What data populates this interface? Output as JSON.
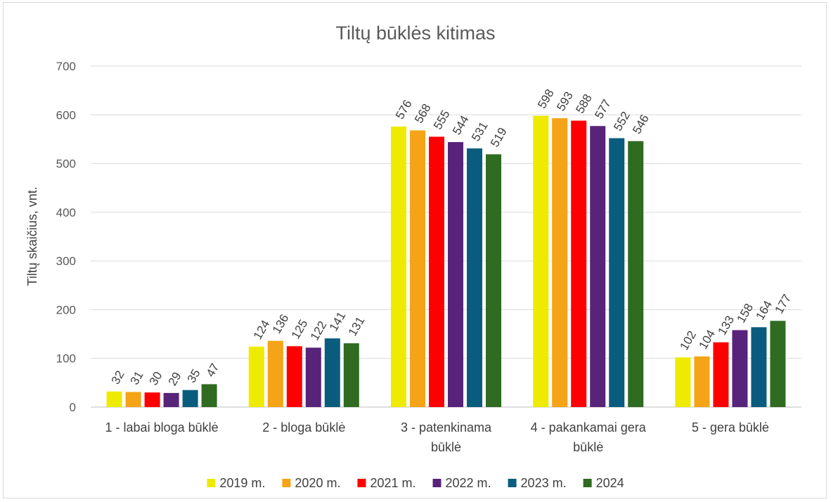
{
  "chart_data": {
    "type": "bar",
    "title": "Tiltų būklės kitimas",
    "ylabel": "Tiltų skaičius, vnt.",
    "xlabel": "",
    "ylim": [
      0,
      700
    ],
    "yticks": [
      0,
      100,
      200,
      300,
      400,
      500,
      600,
      700
    ],
    "grid": true,
    "legend_position": "bottom",
    "categories": [
      [
        "1 - labai bloga būklė"
      ],
      [
        "2 - bloga būklė"
      ],
      [
        "3 - patenkinama",
        "būklė"
      ],
      [
        "4 - pakankamai gera",
        "būklė"
      ],
      [
        "5 - gera būklė"
      ]
    ],
    "series": [
      {
        "name": "2019 m.",
        "color": "#eeea00",
        "values": [
          32,
          124,
          576,
          598,
          102
        ]
      },
      {
        "name": "2020 m.",
        "color": "#f4a416",
        "values": [
          31,
          136,
          568,
          593,
          104
        ]
      },
      {
        "name": "2021 m.",
        "color": "#fe0000",
        "values": [
          30,
          125,
          555,
          588,
          133
        ]
      },
      {
        "name": "2022 m.",
        "color": "#58247a",
        "values": [
          29,
          122,
          544,
          577,
          158
        ]
      },
      {
        "name": "2023 m.",
        "color": "#0a5c7e",
        "values": [
          35,
          141,
          531,
          552,
          164
        ]
      },
      {
        "name": "2024",
        "color": "#2f6b21",
        "values": [
          47,
          131,
          519,
          546,
          177
        ]
      }
    ]
  }
}
